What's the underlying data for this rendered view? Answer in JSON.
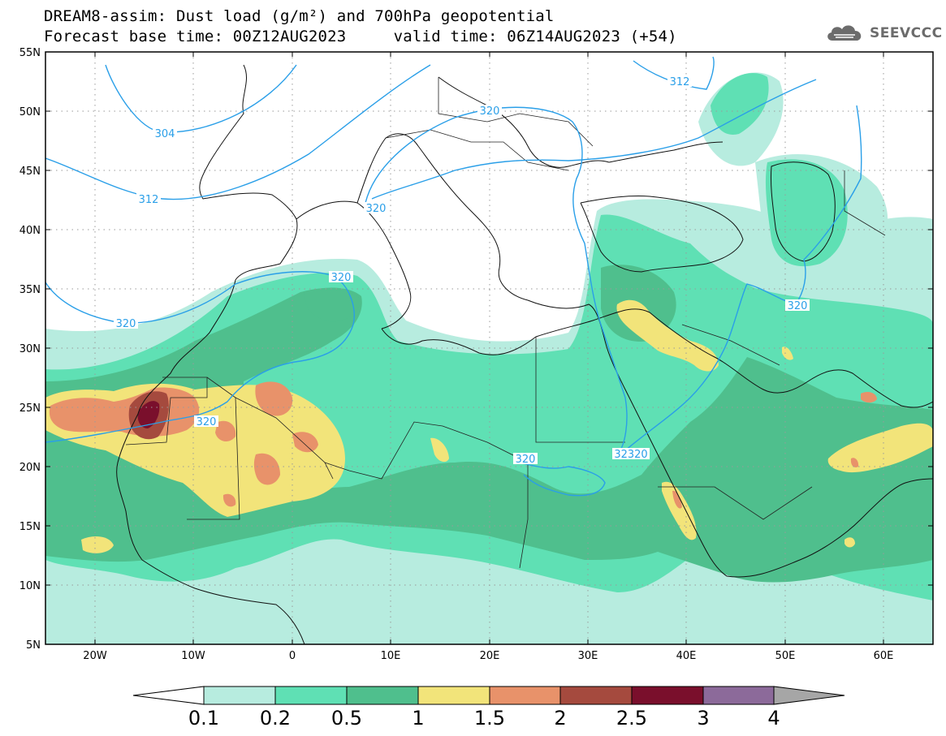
{
  "header": {
    "line1": "DREAM8-assim: Dust load (g/m²) and 700hPa geopotential",
    "line2": "Forecast base time: 00Z12AUG2023     valid time: 06Z14AUG2023 (+54)"
  },
  "logo": {
    "text": "SEEVCCC",
    "icon": "cloud-logo-icon"
  },
  "axes": {
    "lat_labels": [
      "55N",
      "50N",
      "45N",
      "40N",
      "35N",
      "30N",
      "25N",
      "20N",
      "15N",
      "10N",
      "5N"
    ],
    "lon_labels": [
      "20W",
      "10W",
      "0",
      "10E",
      "20E",
      "30E",
      "40E",
      "50E",
      "60E"
    ],
    "lat_range": [
      5,
      55
    ],
    "lon_range": [
      -25,
      65
    ],
    "grid": "dotted"
  },
  "colorbar": {
    "labels": [
      "0.1",
      "0.2",
      "0.5",
      "1",
      "1.5",
      "2",
      "2.5",
      "3",
      "4"
    ],
    "colors": [
      "#b7ecdf",
      "#5fe0b4",
      "#4fbf8d",
      "#f2e47a",
      "#e8926a",
      "#a54a3e",
      "#7a0f2c",
      "#8c6a9a"
    ],
    "low_end_color": "#ffffff",
    "high_end_color": "#a6a6a6"
  },
  "contours": {
    "color": "#2a9fe8",
    "labels": [
      "304",
      "312",
      "312",
      "320",
      "320",
      "320",
      "320",
      "320",
      "320",
      "320",
      "32320"
    ]
  }
}
